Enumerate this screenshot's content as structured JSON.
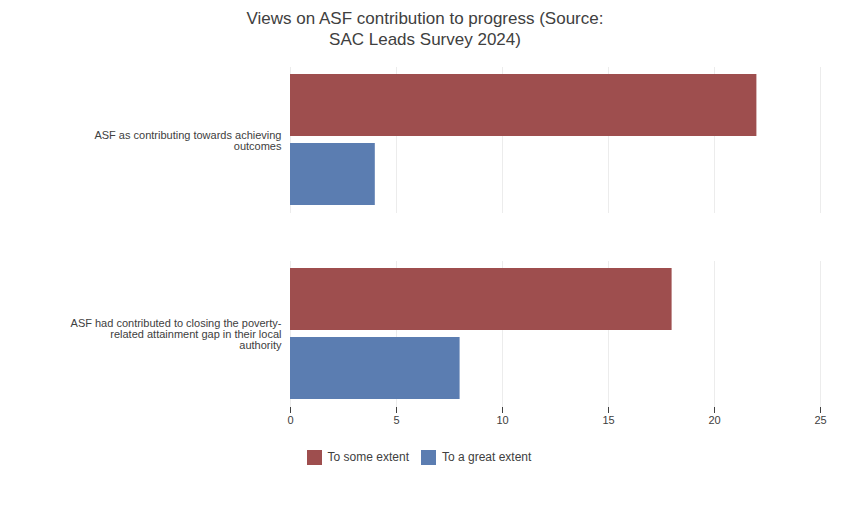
{
  "chart_data": {
    "type": "bar",
    "orientation": "horizontal",
    "title": "Views on ASF contribution to progress (Source:\nSAC Leads Survey 2024)",
    "categories": [
      "ASF as contributing towards achieving\noutcomes",
      "ASF had contributed to closing the poverty-\nrelated attainment gap in their local\nauthority"
    ],
    "series": [
      {
        "name": "To some extent",
        "color": "#9E4E4E",
        "values": [
          22,
          18
        ]
      },
      {
        "name": "To a great extent",
        "color": "#5B7DB1",
        "values": [
          4,
          8
        ]
      }
    ],
    "xlim": [
      0,
      25
    ],
    "xticks": [
      0,
      5,
      10,
      15,
      20,
      25
    ],
    "grid": true,
    "legend": "bottom"
  }
}
